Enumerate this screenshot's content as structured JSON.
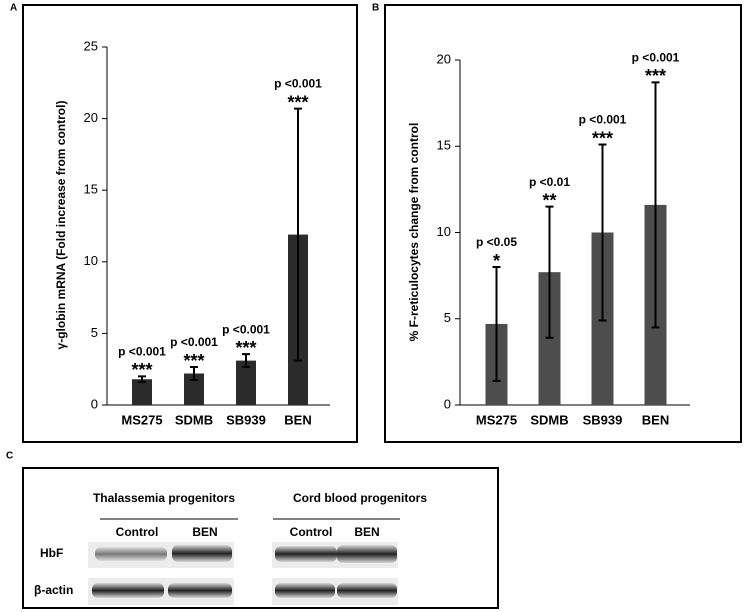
{
  "chart_data": [
    {
      "type": "bar",
      "panel_label": "A",
      "ylabel": "γ-globin mRNA (Fold increase from control)",
      "categories": [
        "MS275",
        "SDMB",
        "SB939",
        "BEN"
      ],
      "values": [
        1.8,
        2.2,
        3.1,
        11.9
      ],
      "errors": [
        0.2,
        0.45,
        0.45,
        8.8
      ],
      "p_labels": [
        "p <0.001",
        "p <0.001",
        "p <0.001",
        "p <0.001"
      ],
      "stars": [
        "***",
        "***",
        "***",
        "***"
      ],
      "color": "#2b2b2b",
      "ylim": [
        0,
        25
      ],
      "yticks": [
        0,
        5,
        10,
        15,
        20,
        25
      ]
    },
    {
      "type": "bar",
      "panel_label": "B",
      "ylabel": "% F-reticulocytes change from control",
      "categories": [
        "MS275",
        "SDMB",
        "SB939",
        "BEN"
      ],
      "values": [
        4.7,
        7.7,
        10.0,
        11.6
      ],
      "errors": [
        3.3,
        3.8,
        5.1,
        7.1
      ],
      "p_labels": [
        "p <0.05",
        "p <0.01",
        "p <0.001",
        "p <0.001"
      ],
      "stars": [
        "*",
        "**",
        "***",
        "***"
      ],
      "color": "#4d4d4d",
      "ylim": [
        0,
        20
      ],
      "yticks": [
        0,
        5,
        10,
        15,
        20
      ]
    }
  ],
  "panel_c": {
    "panel_label": "C",
    "groups": [
      "Thalassemia progenitors",
      "Cord blood progenitors"
    ],
    "lanes": [
      "Control",
      "BEN",
      "Control",
      "BEN"
    ],
    "rows": [
      "HbF",
      "β-actin"
    ]
  }
}
